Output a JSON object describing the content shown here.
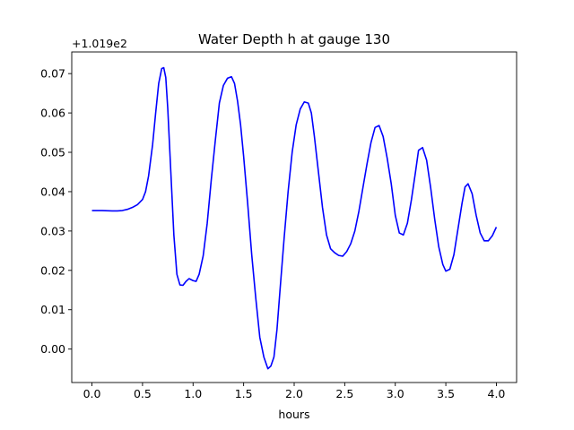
{
  "chart_data": {
    "type": "line",
    "title": "Water Depth h at gauge 130",
    "xlabel": "hours",
    "ylabel": "",
    "y_offset_text": "+1.019e2",
    "xlim": [
      -0.2,
      4.2
    ],
    "ylim": [
      -0.0085,
      0.0755
    ],
    "x_ticks": [
      0.0,
      0.5,
      1.0,
      1.5,
      2.0,
      2.5,
      3.0,
      3.5,
      4.0
    ],
    "x_tick_labels": [
      "0.0",
      "0.5",
      "1.0",
      "1.5",
      "2.0",
      "2.5",
      "3.0",
      "3.5",
      "4.0"
    ],
    "y_ticks": [
      0.0,
      0.01,
      0.02,
      0.03,
      0.04,
      0.05,
      0.06,
      0.07
    ],
    "y_tick_labels": [
      "0.00",
      "0.01",
      "0.02",
      "0.03",
      "0.04",
      "0.05",
      "0.06",
      "0.07"
    ],
    "grid": false,
    "legend": "none",
    "line_color": "#0000ff",
    "series": [
      {
        "x": [
          0.0,
          0.1,
          0.2,
          0.25,
          0.3,
          0.35,
          0.4,
          0.45,
          0.5,
          0.53,
          0.56,
          0.6,
          0.63,
          0.66,
          0.69,
          0.71,
          0.73,
          0.75,
          0.78,
          0.81,
          0.84,
          0.87,
          0.9,
          0.93,
          0.96,
          1.0,
          1.03,
          1.06,
          1.1,
          1.14,
          1.18,
          1.22,
          1.26,
          1.3,
          1.34,
          1.38,
          1.41,
          1.44,
          1.47,
          1.5,
          1.54,
          1.58,
          1.62,
          1.66,
          1.7,
          1.74,
          1.77,
          1.8,
          1.83,
          1.86,
          1.9,
          1.94,
          1.98,
          2.02,
          2.06,
          2.1,
          2.14,
          2.17,
          2.2,
          2.24,
          2.28,
          2.32,
          2.36,
          2.4,
          2.44,
          2.48,
          2.52,
          2.56,
          2.6,
          2.64,
          2.68,
          2.72,
          2.76,
          2.8,
          2.84,
          2.88,
          2.92,
          2.96,
          3.0,
          3.04,
          3.08,
          3.12,
          3.16,
          3.2,
          3.23,
          3.27,
          3.31,
          3.35,
          3.39,
          3.43,
          3.47,
          3.5,
          3.54,
          3.58,
          3.62,
          3.66,
          3.69,
          3.72,
          3.76,
          3.8,
          3.84,
          3.88,
          3.92,
          3.96,
          4.0
        ],
        "y": [
          0.0352,
          0.0352,
          0.0351,
          0.0351,
          0.0352,
          0.0355,
          0.036,
          0.0367,
          0.038,
          0.04,
          0.044,
          0.052,
          0.06,
          0.0675,
          0.0713,
          0.0715,
          0.069,
          0.061,
          0.045,
          0.029,
          0.019,
          0.0163,
          0.0162,
          0.0172,
          0.0179,
          0.0174,
          0.0172,
          0.019,
          0.0237,
          0.032,
          0.043,
          0.053,
          0.0625,
          0.067,
          0.0688,
          0.0692,
          0.0675,
          0.063,
          0.057,
          0.049,
          0.037,
          0.024,
          0.013,
          0.003,
          -0.002,
          -0.005,
          -0.0043,
          -0.002,
          0.005,
          0.015,
          0.028,
          0.04,
          0.05,
          0.057,
          0.061,
          0.0628,
          0.0625,
          0.06,
          0.054,
          0.045,
          0.036,
          0.029,
          0.0255,
          0.0245,
          0.0238,
          0.0236,
          0.0248,
          0.0268,
          0.03,
          0.035,
          0.041,
          0.047,
          0.0525,
          0.0563,
          0.0568,
          0.054,
          0.0485,
          0.042,
          0.034,
          0.0295,
          0.029,
          0.032,
          0.038,
          0.045,
          0.0505,
          0.0512,
          0.048,
          0.041,
          0.033,
          0.026,
          0.0215,
          0.0198,
          0.0203,
          0.024,
          0.0305,
          0.037,
          0.0412,
          0.042,
          0.0395,
          0.034,
          0.0295,
          0.0275,
          0.0275,
          0.0288,
          0.031
        ]
      }
    ]
  }
}
